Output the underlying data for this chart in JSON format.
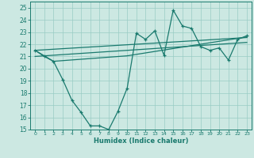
{
  "xlabel": "Humidex (Indice chaleur)",
  "bg_color": "#cce8e2",
  "grid_color": "#99ccc4",
  "line_color": "#1a7a6e",
  "xlim": [
    -0.5,
    23.5
  ],
  "ylim": [
    15,
    25.5
  ],
  "yticks": [
    15,
    16,
    17,
    18,
    19,
    20,
    21,
    22,
    23,
    24,
    25
  ],
  "xticks": [
    0,
    1,
    2,
    3,
    4,
    5,
    6,
    7,
    8,
    9,
    10,
    11,
    12,
    13,
    14,
    15,
    16,
    17,
    18,
    19,
    20,
    21,
    22,
    23
  ],
  "main_y": [
    21.5,
    21.0,
    20.6,
    19.1,
    17.4,
    16.4,
    15.3,
    15.3,
    15.0,
    16.5,
    18.4,
    22.9,
    22.4,
    23.1,
    21.1,
    24.8,
    23.5,
    23.3,
    21.8,
    21.5,
    21.7,
    20.7,
    22.4,
    22.7
  ],
  "trend1_x": [
    0,
    23
  ],
  "trend1_y": [
    21.0,
    22.15
  ],
  "trend2_x": [
    0,
    23
  ],
  "trend2_y": [
    21.5,
    22.55
  ],
  "trend3_x": [
    0,
    2,
    10,
    23
  ],
  "trend3_y": [
    21.5,
    20.6,
    21.05,
    22.6
  ]
}
